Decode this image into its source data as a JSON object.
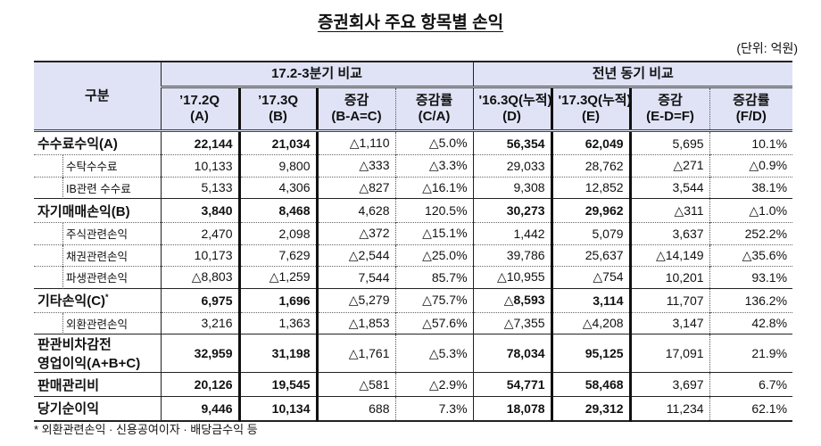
{
  "title": "증권회사 주요 항목별 손익",
  "unit": "(단위: 억원)",
  "header": {
    "category": "구분",
    "group1": "17.2-3분기 비교",
    "group2": "전년 동기 비교",
    "cols": [
      {
        "l1": "’17.2Q",
        "l2": "(A)"
      },
      {
        "l1": "’17.3Q",
        "l2": "(B)"
      },
      {
        "l1": "증감",
        "l2": "(B-A=C)"
      },
      {
        "l1": "증감률",
        "l2": "(C/A)"
      },
      {
        "l1": "'16.3Q(누적)",
        "l2": "(D)"
      },
      {
        "l1": "'17.3Q(누적)",
        "l2": "(E)"
      },
      {
        "l1": "증감",
        "l2": "(E-D=F)"
      },
      {
        "l1": "증감률",
        "l2": "(F/D)"
      }
    ]
  },
  "rows": [
    {
      "type": "main",
      "label": "수수료수익(A)",
      "v": [
        "22,144",
        "21,034",
        "△1,110",
        "△5.0%",
        "56,354",
        "62,049",
        "5,695",
        "10.1%"
      ]
    },
    {
      "type": "sub",
      "label": "수탁수수료",
      "v": [
        "10,133",
        "9,800",
        "△333",
        "△3.3%",
        "29,033",
        "28,762",
        "△271",
        "△0.9%"
      ]
    },
    {
      "type": "sub",
      "label": "IB관련 수수료",
      "v": [
        "5,133",
        "4,306",
        "△827",
        "△16.1%",
        "9,308",
        "12,852",
        "3,544",
        "38.1%"
      ]
    },
    {
      "type": "main",
      "label": "자기매매손익(B)",
      "v": [
        "3,840",
        "8,468",
        "4,628",
        "120.5%",
        "30,273",
        "29,962",
        "△311",
        "△1.0%"
      ]
    },
    {
      "type": "sub",
      "label": "주식관련손익",
      "v": [
        "2,470",
        "2,098",
        "△372",
        "△15.1%",
        "1,442",
        "5,079",
        "3,637",
        "252.2%"
      ]
    },
    {
      "type": "sub",
      "label": "채권관련손익",
      "v": [
        "10,173",
        "7,629",
        "△2,544",
        "△25.0%",
        "39,786",
        "25,637",
        "△14,149",
        "△35.6%"
      ]
    },
    {
      "type": "sub",
      "label": "파생관련손익",
      "v": [
        "△8,803",
        "△1,259",
        "7,544",
        "85.7%",
        "△10,955",
        "△754",
        "10,201",
        "93.1%"
      ]
    },
    {
      "type": "main",
      "label": "기타손익(C)",
      "sup": "*",
      "v": [
        "6,975",
        "1,696",
        "△5,279",
        "△75.7%",
        "△8,593",
        "3,114",
        "11,707",
        "136.2%"
      ]
    },
    {
      "type": "sub",
      "label": "외환관련손익",
      "v": [
        "3,216",
        "1,363",
        "△1,853",
        "△57.6%",
        "△7,355",
        "△4,208",
        "3,147",
        "42.8%"
      ]
    },
    {
      "type": "main",
      "label": "판관비차감전",
      "label2": "영업이익(A+B+C)",
      "v": [
        "32,959",
        "31,198",
        "△1,761",
        "△5.3%",
        "78,034",
        "95,125",
        "17,091",
        "21.9%"
      ]
    },
    {
      "type": "main",
      "label": "판매관리비",
      "v": [
        "20,126",
        "19,545",
        "△581",
        "△2.9%",
        "54,771",
        "58,468",
        "3,697",
        "6.7%"
      ]
    },
    {
      "type": "main",
      "label": "당기순이익",
      "v": [
        "9,446",
        "10,134",
        "688",
        "7.3%",
        "18,078",
        "29,312",
        "11,234",
        "62.1%"
      ]
    }
  ],
  "footnote": "*  외환관련손익 · 신용공여이자 · 배당금수익 등"
}
